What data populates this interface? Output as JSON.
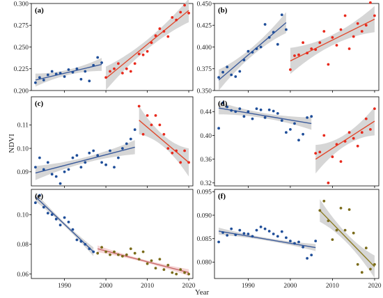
{
  "figure": {
    "ylabel": "NDVI",
    "xlabel": "Year"
  },
  "colors": {
    "blue": "#1f4e99",
    "blue_line": "#3a5a9a",
    "red": "#e8291c",
    "red_line": "#e04a2e",
    "pinkred_line": "#c96a6a",
    "olive": "#7a6b1a",
    "olive_line": "#8a7a20",
    "band": "#c8c8c8",
    "band_pink": "#f1c7c7"
  },
  "chart_data": [
    {
      "id": "a",
      "type": "scatter",
      "label": "(a)",
      "xlim": [
        1982,
        2021
      ],
      "ylim": [
        0.2,
        0.3
      ],
      "yticks": [
        "0.200",
        "0.225",
        "0.250",
        "0.275",
        "0.300"
      ],
      "xticks": [],
      "series": [
        {
          "color": "blue",
          "x": [
            1983,
            1984,
            1985,
            1986,
            1987,
            1988,
            1989,
            1990,
            1991,
            1992,
            1993,
            1994,
            1995,
            1996,
            1997,
            1998,
            1999
          ],
          "y": [
            0.209,
            0.215,
            0.212,
            0.218,
            0.222,
            0.219,
            0.22,
            0.216,
            0.224,
            0.221,
            0.225,
            0.213,
            0.222,
            0.211,
            0.229,
            0.238,
            0.232
          ],
          "fit": [
            [
              1983,
              0.212
            ],
            [
              1999,
              0.23
            ]
          ],
          "band": 0.005
        },
        {
          "color": "red",
          "x": [
            2000,
            2001,
            2002,
            2003,
            2004,
            2005,
            2006,
            2007,
            2008,
            2009,
            2010,
            2011,
            2012,
            2013,
            2014,
            2015,
            2016,
            2017,
            2018,
            2019,
            2020
          ],
          "y": [
            0.215,
            0.222,
            0.225,
            0.231,
            0.22,
            0.225,
            0.222,
            0.231,
            0.242,
            0.241,
            0.245,
            0.255,
            0.263,
            0.271,
            0.268,
            0.262,
            0.284,
            0.281,
            0.29,
            0.298,
            0.289
          ],
          "fit": [
            [
              2000,
              0.214
            ],
            [
              2020,
              0.292
            ]
          ],
          "band": 0.009
        }
      ]
    },
    {
      "id": "b",
      "type": "scatter",
      "label": "(b)",
      "xlim": [
        1982,
        2021
      ],
      "ylim": [
        0.35,
        0.45
      ],
      "yticks": [
        "0.350",
        "0.375",
        "0.400",
        "0.425",
        "0.450"
      ],
      "xticks": [],
      "series": [
        {
          "color": "blue",
          "x": [
            1983,
            1984,
            1985,
            1986,
            1987,
            1988,
            1989,
            1990,
            1991,
            1992,
            1993,
            1994,
            1995,
            1996,
            1997,
            1998,
            1999
          ],
          "y": [
            0.365,
            0.371,
            0.377,
            0.368,
            0.366,
            0.372,
            0.385,
            0.395,
            0.394,
            0.398,
            0.4,
            0.426,
            0.411,
            0.417,
            0.403,
            0.437,
            0.42
          ],
          "fit": [
            [
              1983,
              0.362
            ],
            [
              1999,
              0.428
            ]
          ],
          "band": 0.008
        },
        {
          "color": "red",
          "x": [
            2000,
            2001,
            2002,
            2003,
            2004,
            2005,
            2006,
            2007,
            2008,
            2009,
            2010,
            2011,
            2012,
            2013,
            2014,
            2015,
            2016,
            2017,
            2018,
            2019,
            2020
          ],
          "y": [
            0.374,
            0.39,
            0.391,
            0.405,
            0.393,
            0.398,
            0.397,
            0.405,
            0.418,
            0.38,
            0.411,
            0.402,
            0.42,
            0.436,
            0.398,
            0.412,
            0.427,
            0.418,
            0.425,
            0.451,
            0.436
          ],
          "fit": [
            [
              2000,
              0.384
            ],
            [
              2020,
              0.432
            ]
          ],
          "band": 0.01
        }
      ]
    },
    {
      "id": "c",
      "type": "scatter",
      "label": "(c)",
      "xlim": [
        1982,
        2021
      ],
      "ylim": [
        0.084,
        0.122
      ],
      "yticks": [
        "0.09",
        "0.10",
        "0.11"
      ],
      "ytick_values": [
        0.09,
        0.1,
        0.11
      ],
      "xticks": [],
      "series": [
        {
          "color": "blue",
          "x": [
            1983,
            1984,
            1985,
            1986,
            1987,
            1988,
            1989,
            1990,
            1991,
            1992,
            1993,
            1994,
            1995,
            1996,
            1997,
            1998,
            1999,
            2000,
            2001,
            2002,
            2003,
            2004,
            2005,
            2006,
            2007
          ],
          "y": [
            0.092,
            0.096,
            0.091,
            0.094,
            0.089,
            0.088,
            0.085,
            0.09,
            0.091,
            0.096,
            0.097,
            0.092,
            0.094,
            0.098,
            0.099,
            0.097,
            0.094,
            0.093,
            0.099,
            0.092,
            0.096,
            0.1,
            0.102,
            0.104,
            0.108
          ],
          "fit": [
            [
              1983,
              0.0895
            ],
            [
              2007,
              0.1005
            ]
          ],
          "band": 0.002
        },
        {
          "color": "red",
          "x": [
            2008,
            2009,
            2010,
            2011,
            2012,
            2013,
            2014,
            2015,
            2016,
            2017,
            2018,
            2019,
            2020
          ],
          "y": [
            0.118,
            0.106,
            0.114,
            0.11,
            0.114,
            0.11,
            0.106,
            0.1,
            0.098,
            0.099,
            0.094,
            0.099,
            0.094
          ],
          "fit": [
            [
              2008,
              0.112
            ],
            [
              2020,
              0.094
            ]
          ],
          "band": 0.004
        }
      ]
    },
    {
      "id": "d",
      "type": "scatter",
      "label": "(d)",
      "xlim": [
        1982,
        2021
      ],
      "ylim": [
        0.315,
        0.465
      ],
      "yticks": [
        "0.32",
        "0.36",
        "0.40",
        "0.44"
      ],
      "ytick_values": [
        0.32,
        0.36,
        0.4,
        0.44
      ],
      "xticks": [],
      "series": [
        {
          "color": "blue",
          "x": [
            1983,
            1984,
            1985,
            1986,
            1987,
            1988,
            1989,
            1990,
            1991,
            1992,
            1993,
            1994,
            1995,
            1996,
            1997,
            1998,
            1999,
            2000,
            2001,
            2002,
            2003,
            2004,
            2005
          ],
          "y": [
            0.412,
            0.455,
            0.448,
            0.442,
            0.44,
            0.445,
            0.432,
            0.44,
            0.428,
            0.445,
            0.443,
            0.43,
            0.443,
            0.441,
            0.437,
            0.425,
            0.405,
            0.41,
            0.42,
            0.392,
            0.402,
            0.43,
            0.432
          ],
          "fit": [
            [
              1983,
              0.446
            ],
            [
              2005,
              0.42
            ]
          ],
          "band": 0.007
        },
        {
          "color": "red",
          "x": [
            2006,
            2007,
            2008,
            2009,
            2010,
            2011,
            2012,
            2013,
            2014,
            2015,
            2016,
            2017,
            2018,
            2019,
            2020
          ],
          "y": [
            0.37,
            0.372,
            0.4,
            0.32,
            0.364,
            0.385,
            0.356,
            0.39,
            0.405,
            0.395,
            0.382,
            0.405,
            0.428,
            0.41,
            0.445
          ],
          "fit": [
            [
              2006,
              0.36
            ],
            [
              2020,
              0.424
            ]
          ],
          "band": 0.016
        }
      ]
    },
    {
      "id": "e",
      "type": "scatter",
      "label": "(e)",
      "xlim": [
        1982,
        2021
      ],
      "ylim": [
        0.057,
        0.117
      ],
      "yticks": [
        "0.06",
        "0.08",
        "0.10"
      ],
      "ytick_values": [
        0.06,
        0.08,
        0.1
      ],
      "xticks": [
        "1990",
        "2000",
        "2010",
        "2020"
      ],
      "xtick_values": [
        1990,
        2000,
        2010,
        2020
      ],
      "series": [
        {
          "color": "blue",
          "x": [
            1983,
            1984,
            1985,
            1986,
            1987,
            1988,
            1989,
            1990,
            1991,
            1992,
            1993,
            1994,
            1995,
            1996,
            1997
          ],
          "y": [
            0.108,
            0.113,
            0.105,
            0.101,
            0.1,
            0.097,
            0.093,
            0.098,
            0.095,
            0.09,
            0.083,
            0.082,
            0.08,
            0.077,
            0.075
          ],
          "fit": [
            [
              1983,
              0.112
            ],
            [
              1997,
              0.075
            ]
          ],
          "band": 0.002
        },
        {
          "color": "olive",
          "x": [
            1998,
            1999,
            2000,
            2001,
            2002,
            2003,
            2004,
            2005,
            2006,
            2007,
            2008,
            2009,
            2010,
            2011,
            2012,
            2013,
            2014,
            2015,
            2016,
            2017,
            2018,
            2019,
            2020
          ],
          "y": [
            0.074,
            0.078,
            0.075,
            0.073,
            0.075,
            0.073,
            0.072,
            0.073,
            0.077,
            0.074,
            0.07,
            0.075,
            0.067,
            0.069,
            0.064,
            0.07,
            0.063,
            0.066,
            0.061,
            0.06,
            0.063,
            0.061,
            0.06
          ],
          "fit": [
            [
              1998,
              0.077
            ],
            [
              2020,
              0.061
            ]
          ],
          "band": 0.0015,
          "fit_color": "pinkred_line",
          "band_color": "band_pink"
        }
      ]
    },
    {
      "id": "f",
      "type": "scatter",
      "label": "(f)",
      "xlim": [
        1982,
        2021
      ],
      "ylim": [
        0.0765,
        0.0955
      ],
      "yticks": [
        "0.080",
        "0.085",
        "0.090",
        "0.095"
      ],
      "ytick_values": [
        0.08,
        0.085,
        0.09,
        0.095
      ],
      "xticks": [
        "1990",
        "2000",
        "2010",
        "2020"
      ],
      "xtick_values": [
        1990,
        2000,
        2010,
        2020
      ],
      "series": [
        {
          "color": "blue",
          "x": [
            1983,
            1984,
            1985,
            1986,
            1987,
            1988,
            1989,
            1990,
            1991,
            1992,
            1993,
            1994,
            1995,
            1996,
            1997,
            1998,
            1999,
            2000,
            2001,
            2002,
            2003,
            2004,
            2005,
            2006
          ],
          "y": [
            0.0843,
            0.0863,
            0.0857,
            0.0871,
            0.0858,
            0.0868,
            0.0861,
            0.086,
            0.0855,
            0.0868,
            0.0875,
            0.0871,
            0.0866,
            0.086,
            0.0855,
            0.0865,
            0.0852,
            0.0845,
            0.084,
            0.0843,
            0.0832,
            0.0808,
            0.0815,
            0.0845
          ],
          "fit": [
            [
              1983,
              0.0866
            ],
            [
              2006,
              0.0831
            ]
          ],
          "band": 0.0005
        },
        {
          "color": "olive",
          "x": [
            2007,
            2008,
            2009,
            2010,
            2011,
            2012,
            2013,
            2014,
            2015,
            2016,
            2017,
            2018,
            2019,
            2020
          ],
          "y": [
            0.091,
            0.093,
            0.0888,
            0.0848,
            0.0868,
            0.0915,
            0.0868,
            0.0912,
            0.0862,
            0.0795,
            0.0778,
            0.083,
            0.0785,
            0.0795
          ],
          "fit": [
            [
              2007,
              0.091
            ],
            [
              2020,
              0.079
            ]
          ],
          "band": 0.0016
        }
      ]
    }
  ]
}
